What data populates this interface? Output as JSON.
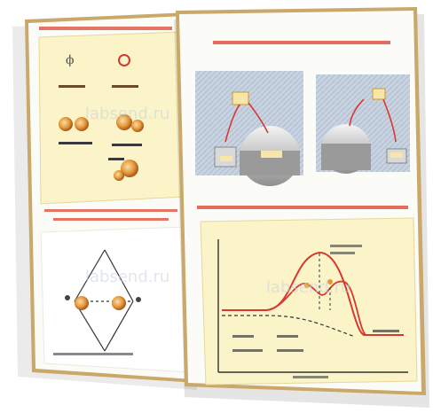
{
  "scene": {
    "description_colors": {
      "frame": "#c9a86a",
      "poster_bg": "#fbfbf7",
      "panel_yellow": "#fbf4c8",
      "panel_blue": "#c7d2e2",
      "accent_red": "#d6392f",
      "accent_orange": "#e39a35"
    }
  },
  "watermark": {
    "text": "labsend.ru"
  },
  "left_poster": {
    "header_text": "",
    "mid_header_text": ""
  },
  "right_poster": {
    "header_text": "",
    "mid_header_text": ""
  }
}
